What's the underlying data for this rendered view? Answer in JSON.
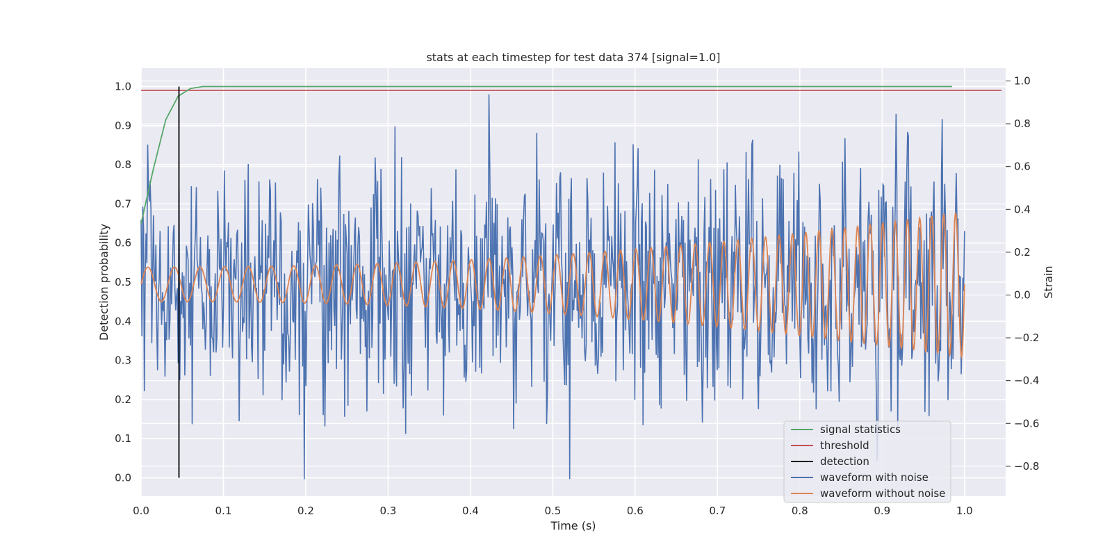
{
  "chart_data": {
    "type": "line",
    "title": "stats at each timestep for test data 374 [signal=1.0]",
    "xlabel": "Time (s)",
    "ylabel_left": "Detection probability",
    "ylabel_right": "Strain",
    "xlim": [
      0.0,
      1.05
    ],
    "ylim_left": [
      -0.047,
      1.047
    ],
    "ylim_right": [
      -0.94,
      1.06
    ],
    "x_ticks": [
      "0.0",
      "0.1",
      "0.2",
      "0.3",
      "0.4",
      "0.5",
      "0.6",
      "0.7",
      "0.8",
      "0.9",
      "1.0"
    ],
    "y_left_ticks": [
      "0.0",
      "0.1",
      "0.2",
      "0.3",
      "0.4",
      "0.5",
      "0.6",
      "0.7",
      "0.8",
      "0.9",
      "1.0"
    ],
    "y_right_ticks": [
      "−0.8",
      "−0.6",
      "−0.4",
      "−0.2",
      "0.0",
      "0.2",
      "0.4",
      "0.6",
      "0.8",
      "1.0"
    ],
    "grid": true,
    "legend_position": "lower-right",
    "signal_statistics": {
      "name": "signal statistics",
      "color": "#55a868",
      "x": [
        0.0,
        0.015,
        0.03,
        0.045,
        0.06,
        0.075,
        0.09,
        0.985
      ],
      "y": [
        0.65,
        0.79,
        0.915,
        0.975,
        0.995,
        1.0,
        1.0,
        1.0
      ]
    },
    "threshold": {
      "name": "threshold",
      "color": "#c44e52",
      "y": 0.99,
      "x_range": [
        0.0,
        1.045
      ]
    },
    "detection": {
      "name": "detection",
      "color": "#000000",
      "x": 0.046,
      "y_range": [
        0.0,
        1.0
      ]
    },
    "waveform_with_noise": {
      "name": "waveform with noise",
      "color": "#4c72b0",
      "axis": "right",
      "x_range": [
        0.0,
        1.0
      ],
      "n_points": 1000,
      "y_range": [
        -0.86,
        1.0
      ]
    },
    "waveform_without_noise": {
      "name": "waveform without noise",
      "color": "#dd8452",
      "axis": "right",
      "x_range": [
        0.0,
        1.0
      ],
      "amplitude_start": 0.08,
      "amplitude_end": 0.34,
      "frequency_start_hz": 30,
      "frequency_end_hz": 70
    },
    "legend": [
      "signal statistics",
      "threshold",
      "detection",
      "waveform with noise",
      "waveform without noise"
    ]
  }
}
